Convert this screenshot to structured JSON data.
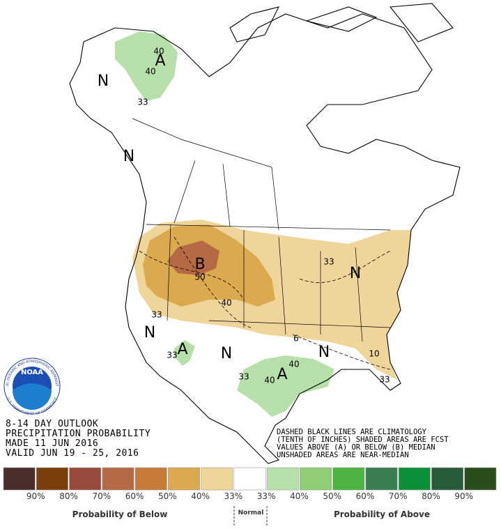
{
  "header": {
    "lines": [
      "8-14 DAY OUTLOOK",
      "PRECIPITATION PROBABILITY",
      "MADE  11 JUN 2016",
      "VALID  JUN 19 - 25, 2016"
    ]
  },
  "notes": {
    "lines": [
      "DASHED BLACK LINES ARE CLIMATOLOGY",
      "(TENTH OF INCHES) SHADED AREAS ARE FCST",
      "VALUES ABOVE (A) OR BELOW (B) MEDIAN",
      "UNSHADED AREAS ARE NEAR-MEDIAN"
    ]
  },
  "map": {
    "labels": [
      "A",
      "40",
      "40",
      "N",
      "33",
      "N",
      "B",
      "50",
      "40",
      "33",
      "N",
      "A",
      "33",
      "N",
      "33",
      "40",
      "A",
      "40",
      "N",
      "N",
      "33",
      "10",
      "33",
      "6"
    ]
  },
  "logo": {
    "name": "NOAA",
    "ring_top": "NATIONAL OCEANIC AND ATMOSPHERIC ADMINISTRATION",
    "ring_bottom": "U.S. DEPARTMENT OF COMMERCE"
  },
  "legend": {
    "colors": [
      "#4b2d2b",
      "#7a3f0a",
      "#9a4a3c",
      "#b56a45",
      "#c77b38",
      "#dba94e",
      "#f0d59b",
      "#ffffff",
      "#b6dfa9",
      "#8fce75",
      "#4cb441",
      "#3a7d50",
      "#0b9138",
      "#275b3a",
      "#2a4d1a"
    ],
    "labels": [
      "90%",
      "80%",
      "70%",
      "60%",
      "50%",
      "40%",
      "33%",
      "33%",
      "40%",
      "50%",
      "60%",
      "70%",
      "80%",
      "90%"
    ],
    "below": "Probability of Below",
    "normal": "Normal",
    "above": "Probability of Above"
  }
}
